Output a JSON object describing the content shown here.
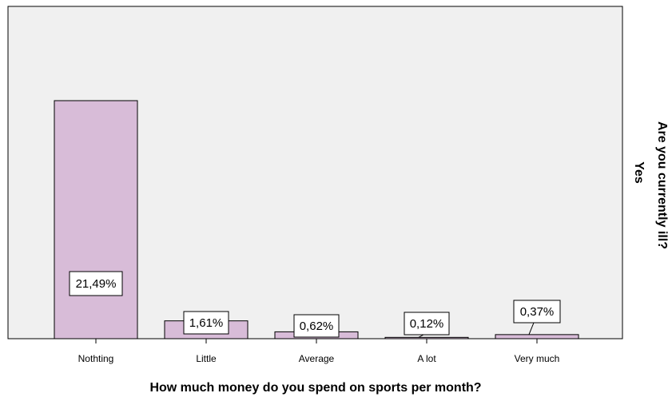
{
  "chart_data": {
    "type": "bar",
    "title": "",
    "xlabel": "How much money do you spend on sports per month?",
    "ylabel": "",
    "panel_label": "Are you currently ill?",
    "panel_value": "Yes",
    "categories": [
      "Nothting",
      "Little",
      "Average",
      "A lot",
      "Very much"
    ],
    "values": [
      21.49,
      1.61,
      0.62,
      0.12,
      0.37
    ],
    "data_labels": [
      "21,49%",
      "1,61%",
      "0,62%",
      "0,12%",
      "0,37%"
    ],
    "ylim": [
      0,
      30
    ],
    "grid": false,
    "legend": "none",
    "colors": {
      "bar_fill": "#d8bcd8",
      "plot_background": "#f0f0f0",
      "outline": "#000000"
    }
  }
}
